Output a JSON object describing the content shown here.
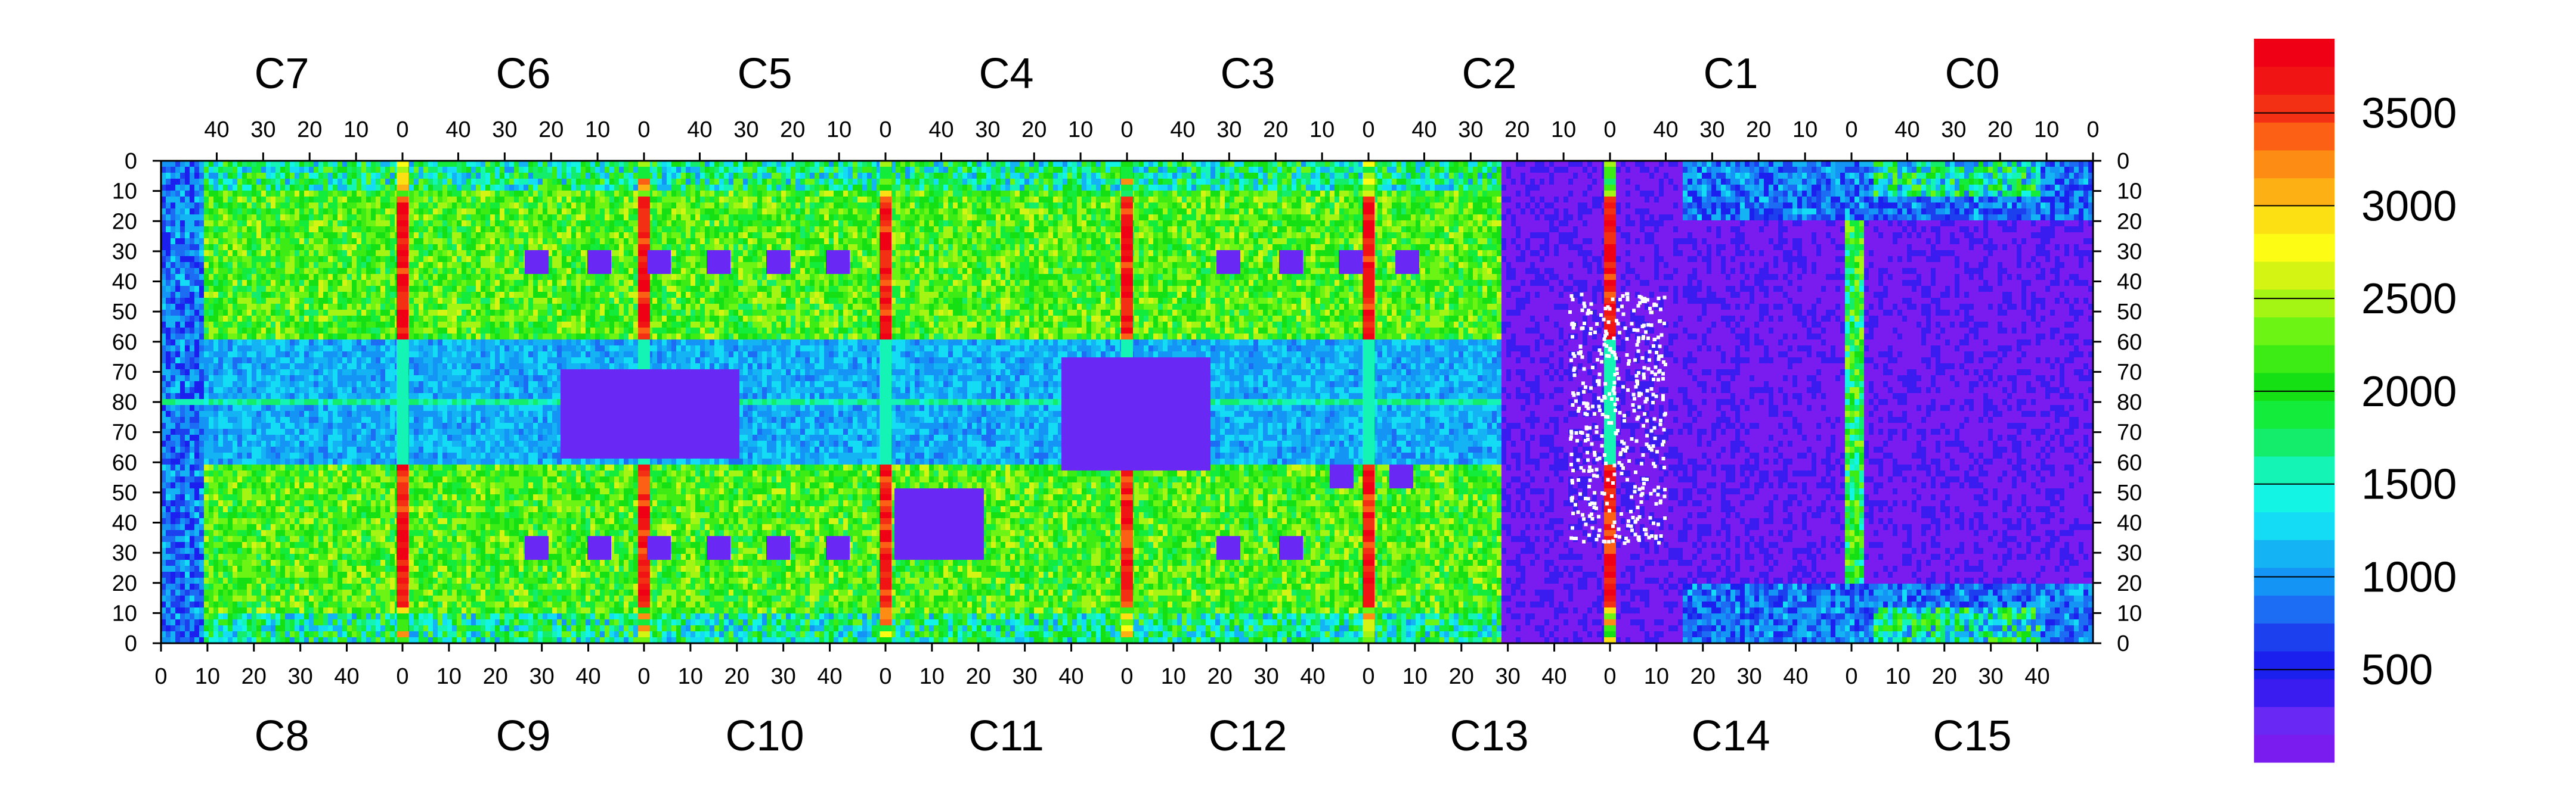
{
  "chart_data": {
    "type": "heatmap",
    "title": "",
    "xlabel": "",
    "ylabel": "",
    "top_chips": [
      "C7",
      "C6",
      "C5",
      "C4",
      "C3",
      "C2",
      "C1",
      "C0"
    ],
    "bottom_chips": [
      "C8",
      "C9",
      "C10",
      "C11",
      "C12",
      "C13",
      "C14",
      "C15"
    ],
    "top_tick_labels": [
      "40",
      "30",
      "20",
      "10",
      "0"
    ],
    "bottom_tick_labels": [
      "0",
      "10",
      "20",
      "30",
      "40"
    ],
    "left_y_tick_labels": [
      "0",
      "10",
      "20",
      "30",
      "40",
      "50",
      "60",
      "70",
      "80",
      "70",
      "60",
      "50",
      "40",
      "30",
      "20",
      "10",
      "0"
    ],
    "right_y_tick_labels": [
      "0",
      "10",
      "20",
      "30",
      "40",
      "50",
      "60",
      "70",
      "80",
      "70",
      "60",
      "50",
      "40",
      "30",
      "20",
      "10",
      "0"
    ],
    "rows_per_half": 80,
    "cols_per_chip": 52,
    "colorbar": {
      "min": 0,
      "max": 3900,
      "ticks": [
        "500",
        "1000",
        "1500",
        "2000",
        "2500",
        "3000",
        "3500"
      ],
      "tick_values": [
        500,
        1000,
        1500,
        2000,
        2500,
        3000,
        3500
      ],
      "colors": [
        "#7a1cf0",
        "#6a28f4",
        "#3b1cf0",
        "#1c20ee",
        "#1c40ee",
        "#1c6cf4",
        "#1494f4",
        "#14b4f4",
        "#14dcf4",
        "#14f4e4",
        "#14f4b4",
        "#14ec6c",
        "#14ec3c",
        "#14e014",
        "#3cec14",
        "#6cf414",
        "#a4f414",
        "#d4f414",
        "#fcfc14",
        "#fce014",
        "#fcb014",
        "#fc8c14",
        "#fc6014",
        "#f43014",
        "#f01414",
        "#f00014"
      ]
    },
    "regions": [
      {
        "chip": "C13",
        "description": "low-count dead region with white (empty) pixels around x=0"
      },
      {
        "chip": "C14",
        "description": "mostly low counts (violet)"
      },
      {
        "chip": "C15",
        "description": "mostly low counts (violet)"
      }
    ],
    "note_hot_columns_at_chip_edge_0": true,
    "note_center_row_80_bright_line": true
  }
}
